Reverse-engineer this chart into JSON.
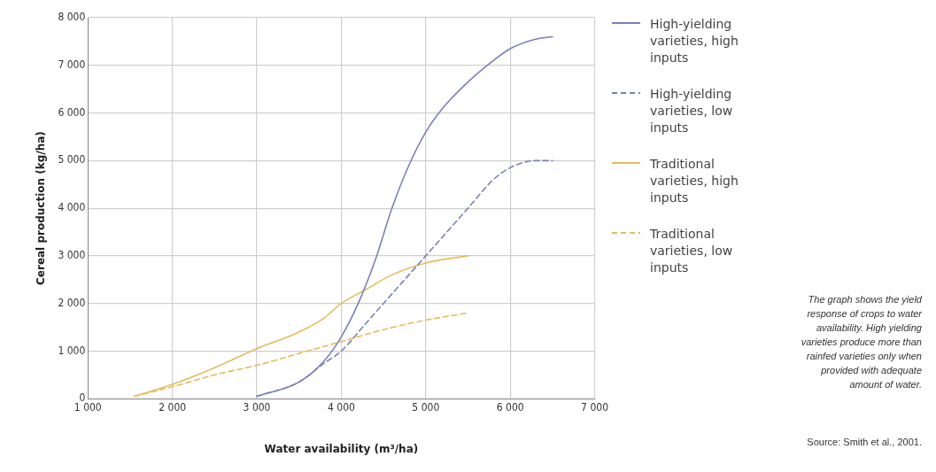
{
  "chart_data": {
    "type": "line",
    "xlabel": "Water availability (m³/ha)",
    "ylabel": "Cereal production (kg/ha)",
    "xlim": [
      1000,
      7000
    ],
    "ylim": [
      0,
      8000
    ],
    "xticks": [
      {
        "value": 1000,
        "label": "1 000"
      },
      {
        "value": 2000,
        "label": "2 000"
      },
      {
        "value": 3000,
        "label": "3 000"
      },
      {
        "value": 4000,
        "label": "4 000"
      },
      {
        "value": 5000,
        "label": "5 000"
      },
      {
        "value": 6000,
        "label": "6 000"
      },
      {
        "value": 7000,
        "label": "7 000"
      }
    ],
    "yticks": [
      0,
      {
        "value": 1000,
        "label": "1 000"
      },
      {
        "value": 2000,
        "label": "2 000"
      },
      {
        "value": 3000,
        "label": "3 000"
      },
      {
        "value": 4000,
        "label": "4 000"
      },
      {
        "value": 5000,
        "label": "5 000"
      },
      {
        "value": 6000,
        "label": "6 000"
      },
      {
        "value": 7000,
        "label": "7 000"
      },
      {
        "value": 8000,
        "label": "8 000"
      }
    ],
    "grid": true,
    "legend": "right",
    "marker": "none",
    "series": [
      {
        "name": "High-yielding varieties, high inputs",
        "color": "#7b80b8",
        "line_style": "solid",
        "x": [
          3000,
          3500,
          3800,
          4000,
          4200,
          4400,
          4600,
          4800,
          5000,
          5200,
          5500,
          5800,
          6000,
          6300,
          6500
        ],
        "values": [
          50,
          350,
          800,
          1300,
          2000,
          2900,
          4000,
          4900,
          5600,
          6100,
          6650,
          7100,
          7350,
          7550,
          7600
        ]
      },
      {
        "name": "High-yielding varieties, low inputs",
        "color": "#7b80b8",
        "line_style": "dashed",
        "x": [
          3000,
          3500,
          3800,
          4000,
          4300,
          4600,
          5000,
          5300,
          5500,
          5800,
          6000,
          6300,
          6500
        ],
        "values": [
          50,
          350,
          750,
          1000,
          1600,
          2200,
          3000,
          3600,
          4000,
          4600,
          4850,
          5000,
          5000
        ]
      },
      {
        "name": "Traditional varieties, high inputs",
        "color": "#e6bb5e",
        "line_style": "solid",
        "x": [
          1550,
          2000,
          2500,
          3000,
          3500,
          3800,
          4000,
          4300,
          4600,
          5000,
          5500
        ],
        "values": [
          50,
          300,
          650,
          1050,
          1400,
          1700,
          2000,
          2300,
          2600,
          2850,
          3000
        ]
      },
      {
        "name": "Traditional varieties, low inputs",
        "color": "#e6bb5e",
        "line_style": "dashed",
        "x": [
          1550,
          2000,
          2500,
          3000,
          3500,
          4000,
          4500,
          5000,
          5500
        ],
        "values": [
          50,
          250,
          500,
          700,
          950,
          1200,
          1450,
          1650,
          1800
        ]
      }
    ],
    "annotations": [
      "The graph shows the yield response of crops to water availability. High yielding varieties produce more than rainfed varieties only when provided with adequate amount of water.",
      "Source: Smith et al., 2001."
    ]
  }
}
